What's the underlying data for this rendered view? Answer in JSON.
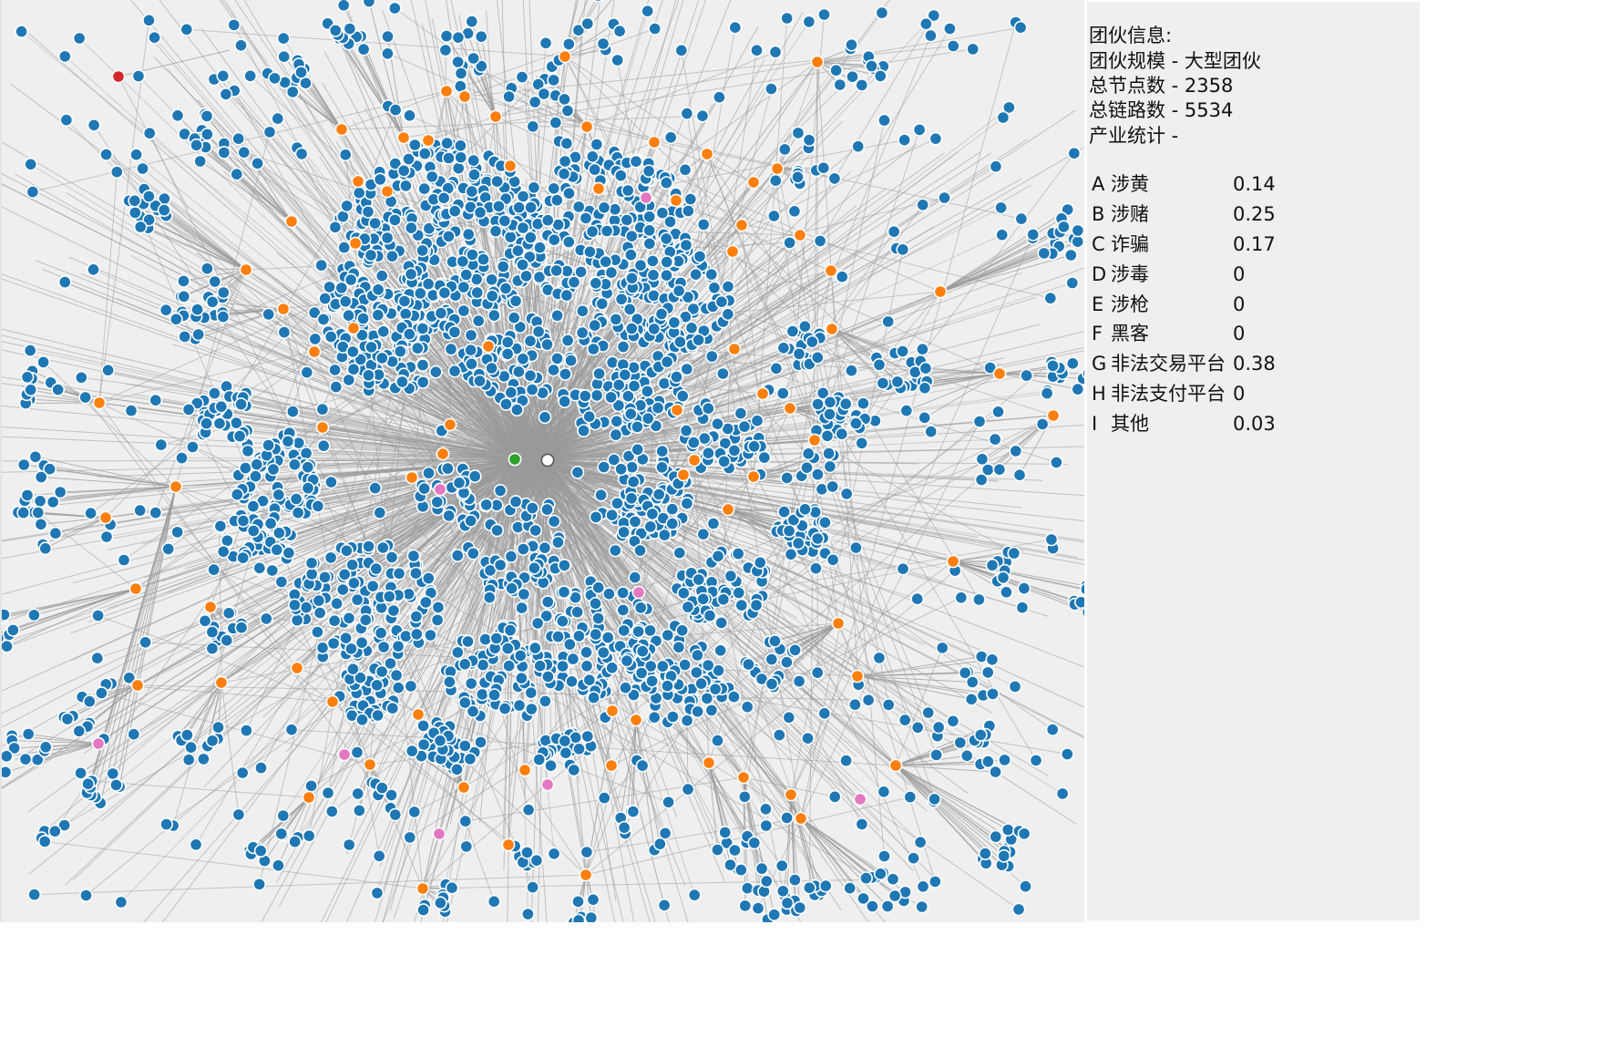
{
  "gang_info": {
    "heading": "团伙信息:",
    "scale": "团伙规模 - 大型团伙",
    "total_nodes": "总节点数 - 2358",
    "total_links": "总链路数 - 5534",
    "industry_heading": "产业统计 -"
  },
  "industries": [
    {
      "code": "A",
      "name": "涉黄",
      "value": "0.14"
    },
    {
      "code": "B",
      "name": "涉赌",
      "value": "0.25"
    },
    {
      "code": "C",
      "name": "诈骗",
      "value": "0.17"
    },
    {
      "code": "D",
      "name": "涉毒",
      "value": "0"
    },
    {
      "code": "E",
      "name": "涉枪",
      "value": "0"
    },
    {
      "code": "F",
      "name": "黑客",
      "value": "0"
    },
    {
      "code": "G",
      "name": "非法交易平台",
      "value": "0.38"
    },
    {
      "code": "H",
      "name": "非法支付平台",
      "value": "0"
    },
    {
      "code": "I",
      "name": "其他",
      "value": "0.03"
    }
  ],
  "graph": {
    "node_colors": {
      "leaf": "#1f77b4",
      "hub": "#ff7f0e",
      "special": "#e377c2",
      "center": "#2ca02c",
      "alert": "#d62728",
      "link": "#9a9a9a"
    }
  }
}
